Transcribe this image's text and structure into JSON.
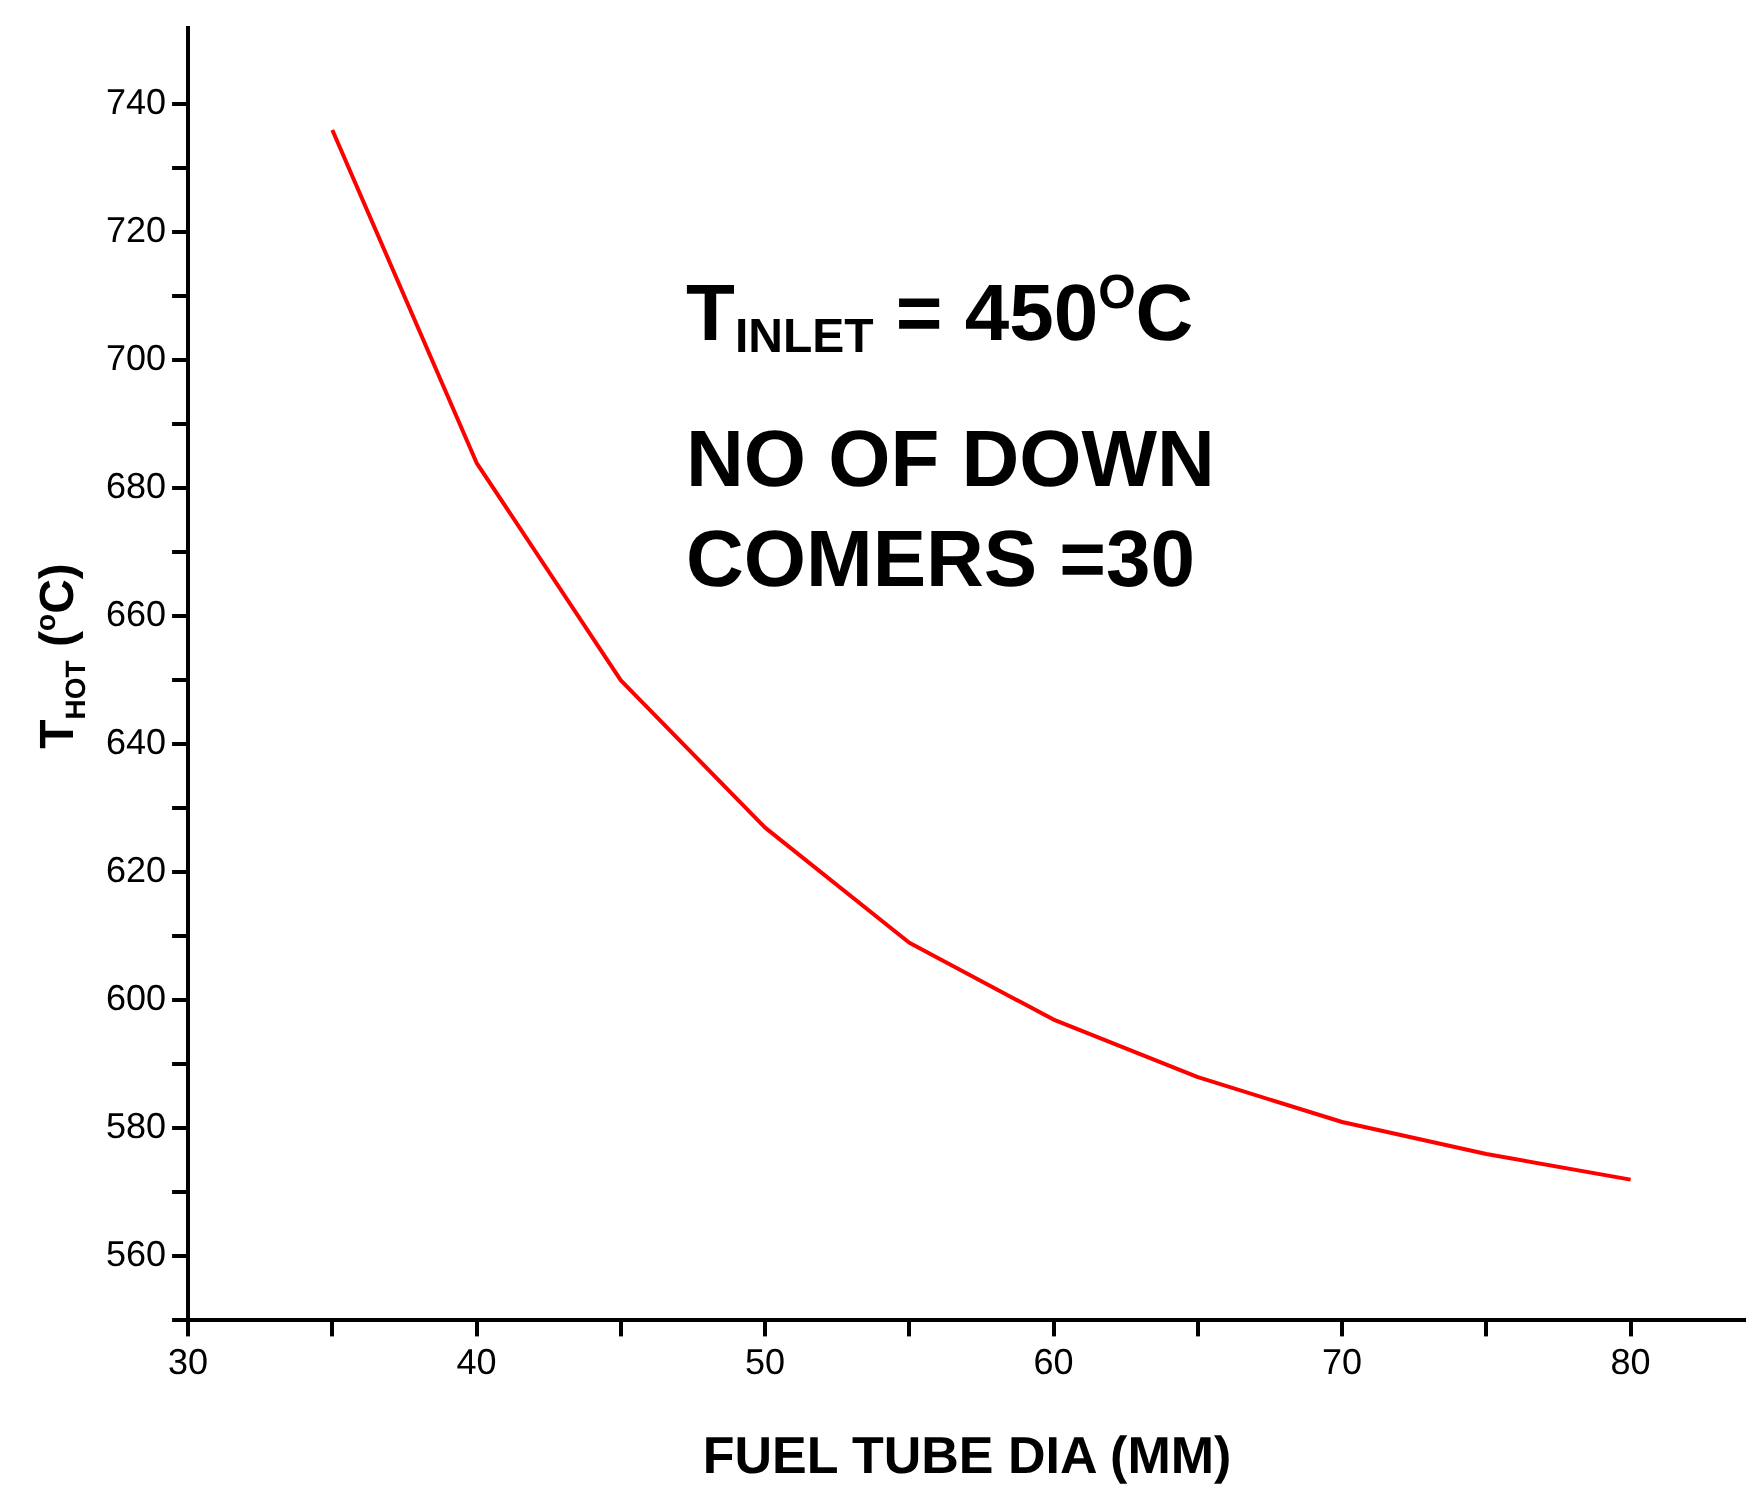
{
  "chart_data": {
    "type": "line",
    "xlabel": "FUEL TUBE DIA (MM)",
    "ylabel": "T$_{HOT}$ ($^{o}$C)",
    "x": [
      35,
      40,
      45,
      50,
      55,
      60,
      65,
      70,
      75,
      80
    ],
    "series": [
      {
        "color": "#ff0000",
        "values": [
          736,
          684,
          650,
          627,
          609,
          597,
          588,
          581,
          576,
          572
        ]
      }
    ],
    "xlim": [
      30,
      84
    ],
    "xticks": [
      30,
      {
        "value": 35,
        "label": null
      },
      40,
      {
        "value": 45,
        "label": null
      },
      50,
      {
        "value": 55,
        "label": null
      },
      60,
      {
        "value": 65,
        "label": null
      },
      70,
      {
        "value": 75,
        "label": null
      },
      80
    ],
    "ylim": [
      550,
      752
    ],
    "yticks": [
      {
        "value": 550,
        "label": null
      },
      560,
      {
        "value": 570,
        "label": null
      },
      580,
      {
        "value": 590,
        "label": null
      },
      600,
      {
        "value": 610,
        "label": null
      },
      620,
      {
        "value": 630,
        "label": null
      },
      640,
      {
        "value": 650,
        "label": null
      },
      660,
      {
        "value": 670,
        "label": null
      },
      680,
      {
        "value": 690,
        "label": null
      },
      700,
      {
        "value": 710,
        "label": null
      },
      720,
      {
        "value": 730,
        "label": null
      },
      740
    ],
    "grid": false,
    "legend": false,
    "marker": "none",
    "line_style": "solid",
    "annotations": [
      "T$_{INLET}$ = 450$^{O}$C",
      "NO OF DOWN COMERS =30"
    ]
  }
}
